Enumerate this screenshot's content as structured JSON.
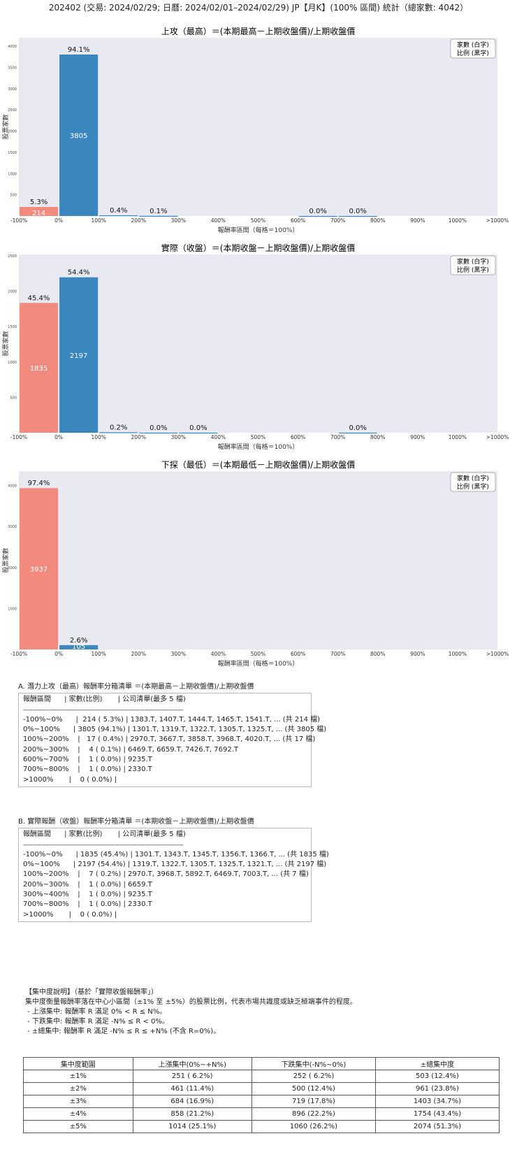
{
  "main_title": "202402 (交易: 2024/02/29; 日曆: 2024/02/01–2024/02/29) JP【月K】(100% 區間) 統計（總家數: 4042）",
  "legend": {
    "line1": "家數 (白字)",
    "line2": "比例 (黑字)"
  },
  "colors": {
    "negative": "#f28b7e",
    "positive": "#3a86bf",
    "panel_bg": "#e9e9f1"
  },
  "chart_data": [
    {
      "type": "bar",
      "title": "上攻（最高）＝(本期最高－上期收盤價)/上期收盤價",
      "xlabel": "報酬率區間（每格＝100%）",
      "ylabel": "股票家數",
      "categories": [
        "-100%~0%",
        "0%~100%",
        "100%~200%",
        "200%~300%",
        "300%~400%",
        "400%~500%",
        "500%~600%",
        "600%~700%",
        "700%~800%",
        "800%~900%",
        "900%~1000%",
        ">1000%"
      ],
      "tick_labels": [
        "-100%",
        "0%",
        "100%",
        "200%",
        "300%",
        "400%",
        "500%",
        "600%",
        "700%",
        "800%",
        "900%",
        "1000%",
        ">1000%"
      ],
      "values": [
        214,
        3805,
        17,
        4,
        0,
        0,
        0,
        1,
        1,
        0,
        0,
        0
      ],
      "value_labels": [
        "214",
        "3805",
        "",
        "",
        "",
        "",
        "",
        "",
        "",
        "",
        "",
        ""
      ],
      "pct_labels": [
        "5.3%",
        "94.1%",
        "0.4%",
        "0.1%",
        "",
        "",
        "",
        "0.0%",
        "0.0%",
        "",
        "",
        ""
      ],
      "ylim": [
        0,
        4200
      ],
      "yticks": [
        500,
        1000,
        1500,
        2000,
        2500,
        3000,
        3500,
        4000
      ],
      "ytick_labels": [
        "500",
        "1000",
        "1500",
        "2000",
        "2500",
        "3000",
        "3500",
        "4000"
      ]
    },
    {
      "type": "bar",
      "title": "實際（收盤）＝(本期收盤－上期收盤價)/上期收盤價",
      "xlabel": "報酬率區間（每格＝100%）",
      "ylabel": "股票家數",
      "categories": [
        "-100%~0%",
        "0%~100%",
        "100%~200%",
        "200%~300%",
        "300%~400%",
        "400%~500%",
        "500%~600%",
        "600%~700%",
        "700%~800%",
        "800%~900%",
        "900%~1000%",
        ">1000%"
      ],
      "tick_labels": [
        "-100%",
        "0%",
        "100%",
        "200%",
        "300%",
        "400%",
        "500%",
        "600%",
        "700%",
        "800%",
        "900%",
        "1000%",
        ">1000%"
      ],
      "values": [
        1835,
        2197,
        7,
        1,
        1,
        0,
        0,
        0,
        1,
        0,
        0,
        0
      ],
      "value_labels": [
        "1835",
        "2197",
        "",
        "",
        "",
        "",
        "",
        "",
        "",
        "",
        "",
        ""
      ],
      "pct_labels": [
        "45.4%",
        "54.4%",
        "0.2%",
        "0.0%",
        "0.0%",
        "",
        "",
        "",
        "0.0%",
        "",
        "",
        ""
      ],
      "ylim": [
        0,
        2520
      ],
      "yticks": [
        500,
        1000,
        1500,
        2000,
        2500
      ],
      "ytick_labels": [
        "500",
        "1000",
        "1500",
        "2000",
        "2500"
      ]
    },
    {
      "type": "bar",
      "title": "下探（最低）＝(本期最低－上期收盤價)/上期收盤價",
      "xlabel": "報酬率區間（每格＝100%）",
      "ylabel": "股票家數",
      "categories": [
        "-100%~0%",
        "0%~100%",
        "100%~200%",
        "200%~300%",
        "300%~400%",
        "400%~500%",
        "500%~600%",
        "600%~700%",
        "700%~800%",
        "800%~900%",
        "900%~1000%",
        ">1000%"
      ],
      "tick_labels": [
        "-100%",
        "0%",
        "100%",
        "200%",
        "300%",
        "400%",
        "500%",
        "600%",
        "700%",
        "800%",
        "900%",
        "1000%",
        ">1000%"
      ],
      "values": [
        3937,
        105,
        0,
        0,
        0,
        0,
        0,
        0,
        0,
        0,
        0,
        0
      ],
      "value_labels": [
        "3937",
        "105",
        "",
        "",
        "",
        "",
        "",
        "",
        "",
        "",
        "",
        ""
      ],
      "pct_labels": [
        "97.4%",
        "2.6%",
        "",
        "",
        "",
        "",
        "",
        "",
        "",
        "",
        "",
        ""
      ],
      "ylim": [
        0,
        4350
      ],
      "yticks": [
        1000,
        2000,
        3000,
        4000
      ],
      "ytick_labels": [
        "1000",
        "2000",
        "3000",
        "4000"
      ]
    }
  ],
  "list_a": {
    "title": "A. 潛力上攻（最高）報酬率分箱清單 ＝(本期最高－上期收盤價)/上期收盤價",
    "header": "報酬區間      | 家數(比例)       | 公司清單(最多 5 檔)",
    "separator": "------------------------------------------------------------------------------------------------",
    "rows": [
      "-100%~0%      |  214 ( 5.3%) | 1383.T, 1407.T, 1444.T, 1465.T, 1541.T, ... (共 214 檔)",
      "0%~100%      | 3805 (94.1%) | 1301.T, 1319.T, 1322.T, 1305.T, 1325.T, ... (共 3805 檔)",
      "100%~200%    |   17 ( 0.4%) | 2970.T, 3667.T, 3858.T, 3968.T, 4020.T, ... (共 17 檔)",
      "200%~300%    |    4 ( 0.1%) | 6469.T, 6659.T, 7426.T, 7692.T",
      "600%~700%    |    1 ( 0.0%) | 9235.T",
      "700%~800%    |    1 ( 0.0%) | 2330.T",
      ">1000%       |    0 ( 0.0%) |"
    ]
  },
  "list_b": {
    "title": "B. 實際報酬（收盤）報酬率分箱清單 ＝(本期收盤－上期收盤價)/上期收盤價",
    "header": "報酬區間      | 家數(比例)       | 公司清單(最多 5 檔)",
    "separator": "------------------------------------------------------------------------------------------------",
    "rows": [
      "-100%~0%      | 1835 (45.4%) | 1301.T, 1343.T, 1345.T, 1356.T, 1366.T, ... (共 1835 檔)",
      "0%~100%      | 2197 (54.4%) | 1319.T, 1322.T, 1305.T, 1325.T, 1321.T, ... (共 2197 檔)",
      "100%~200%    |    7 ( 0.2%) | 2970.T, 3968.T, 5892.T, 6469.T, 7003.T, ... (共 7 檔)",
      "200%~300%    |    1 ( 0.0%) | 6659.T",
      "300%~400%    |    1 ( 0.0%) | 9235.T",
      "700%~800%    |    1 ( 0.0%) | 2330.T",
      ">1000%       |    0 ( 0.0%) |"
    ]
  },
  "concentration_note": {
    "title": "【集中度說明】（基於「實際收盤報酬率」）",
    "lines": [
      "集中度衡量報酬率落在中心小區間（±1% 至 ±5%）的股票比例，代表市場共識度或缺乏極端事件的程度。",
      " - 上漲集中: 報酬率 R 滿足 0% < R ≤ N%。",
      " - 下跌集中: 報酬率 R 滿足 -N% ≤ R < 0%。",
      " - ±總集中: 報酬率 R 滿足 -N% ≤ R ≤ +N% (不含 R=0%)。"
    ]
  },
  "concentration_table": {
    "headers": [
      "集中度範圍",
      "上漲集中(0%~+N%)",
      "下跌集中(-N%~0%)",
      "±總集中度"
    ],
    "rows": [
      [
        "±1%",
        "251 ( 6.2%)",
        "252 ( 6.2%)",
        "503 (12.4%)"
      ],
      [
        "±2%",
        "461 (11.4%)",
        "500 (12.4%)",
        "961 (23.8%)"
      ],
      [
        "±3%",
        "684 (16.9%)",
        "719 (17.8%)",
        "1403 (34.7%)"
      ],
      [
        "±4%",
        "858 (21.2%)",
        "896 (22.2%)",
        "1754 (43.4%)"
      ],
      [
        "±5%",
        "1014 (25.1%)",
        "1060 (26.2%)",
        "2074 (51.3%)"
      ]
    ]
  }
}
